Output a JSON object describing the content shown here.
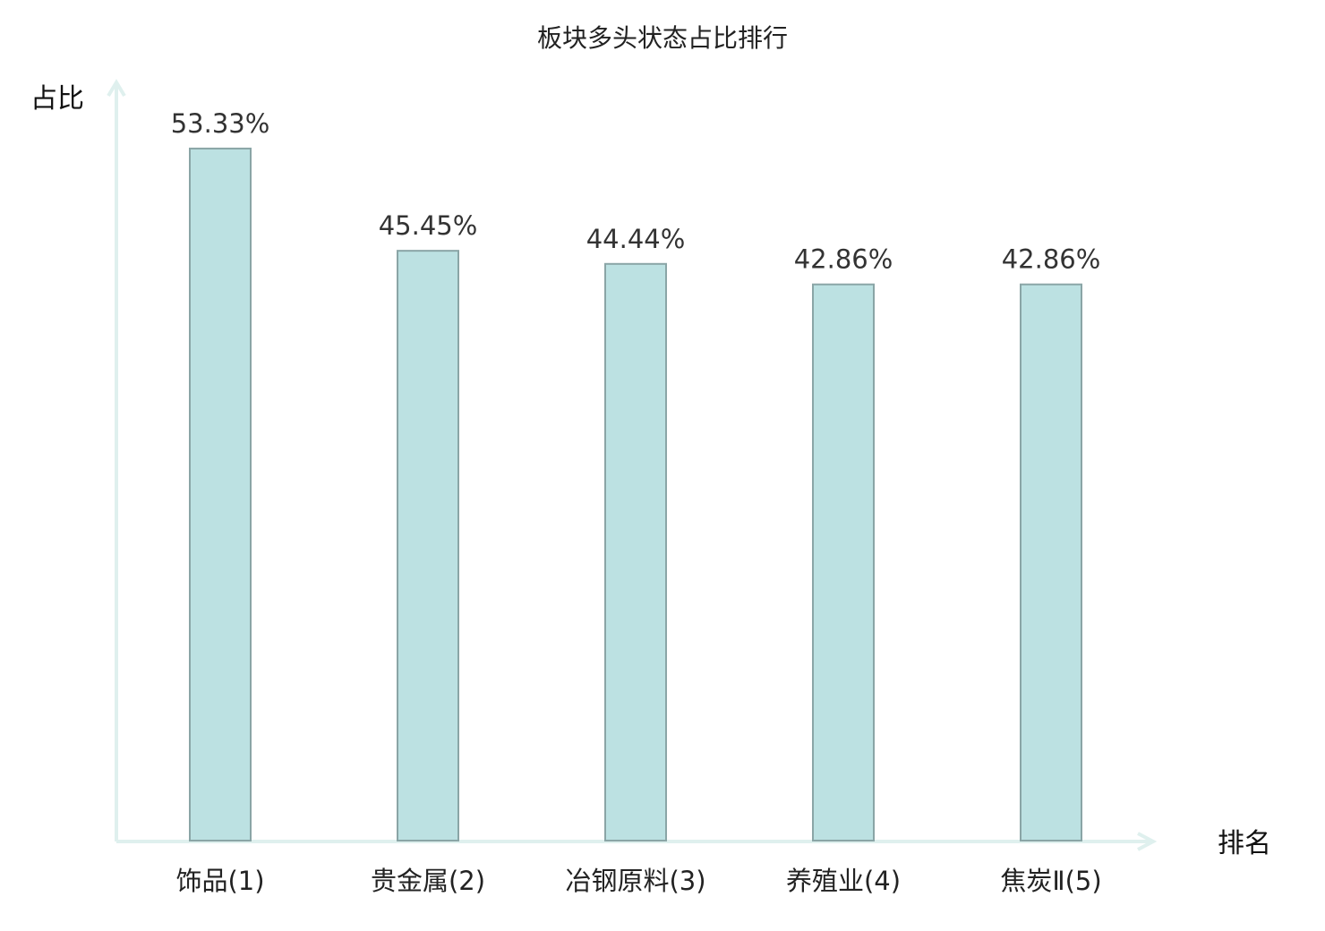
{
  "chart_data": {
    "type": "bar",
    "title": "板块多头状态占比排行",
    "ylabel": "占比",
    "xlabel": "排名",
    "ylim": [
      0,
      58.43
    ],
    "categories": [
      "饰品",
      "贵金属",
      "冶钢原料",
      "养殖业",
      "焦炭Ⅱ"
    ],
    "ranks": [
      "(1)",
      "(2)",
      "(3)",
      "(4)",
      "(5)"
    ],
    "values": [
      53.33,
      45.45,
      44.44,
      42.86,
      42.86
    ],
    "value_labels": [
      "53.33%",
      "45.45%",
      "44.44%",
      "42.86%",
      "42.86%"
    ],
    "grid": false,
    "legend": "none"
  },
  "colors": {
    "bar_fill": "#bce1e2",
    "bar_stroke": "#8aa5a6",
    "axis": "#dff0ee",
    "highlight_category": "#e0201c",
    "category_text": "#222222",
    "value_text": "#333333"
  }
}
